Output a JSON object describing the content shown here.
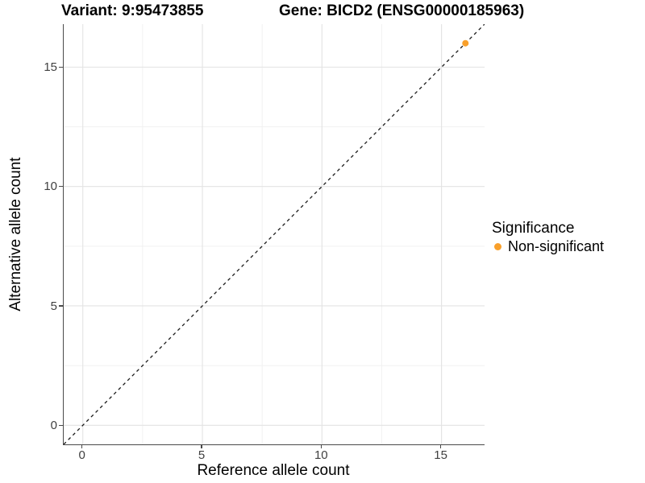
{
  "header": {
    "variant_title": "Variant: 9:95473855",
    "gene_title": "Gene: BICD2 (ENSG00000185963)"
  },
  "axes": {
    "x": {
      "label": "Reference allele count",
      "ticks": [
        "0",
        "5",
        "10",
        "15"
      ]
    },
    "y": {
      "label": "Alternative allele count",
      "ticks": [
        "15",
        "10",
        "5",
        "0"
      ]
    }
  },
  "legend": {
    "title": "Significance",
    "items": [
      {
        "label": "Non-significant",
        "color": "#F9A02B"
      }
    ]
  },
  "colors": {
    "point_orange": "#F9A02B",
    "axis_line": "#4a4a4a",
    "grid_major": "#e3e3e3",
    "grid_minor": "#f1f1f1",
    "dashed_line": "#1a1a1a",
    "tick_text": "#404040"
  },
  "chart_data": {
    "type": "scatter",
    "title": "Variant: 9:95473855 | Gene: BICD2 (ENSG00000185963)",
    "xlabel": "Reference allele count",
    "ylabel": "Alternative allele count",
    "xlim": [
      -0.8,
      16.8
    ],
    "ylim": [
      -0.8,
      16.8
    ],
    "x_major_ticks": [
      0,
      5,
      10,
      15
    ],
    "y_major_ticks": [
      0,
      5,
      10,
      15
    ],
    "x_minor_ticks": [
      2.5,
      7.5,
      12.5
    ],
    "y_minor_ticks": [
      2.5,
      7.5,
      12.5
    ],
    "grid": "major+minor",
    "legend_position": "right",
    "series": [
      {
        "name": "Non-significant",
        "color": "#F9A02B",
        "marker": "circle",
        "points": [
          {
            "x": 16,
            "y": 16
          }
        ]
      }
    ],
    "reference_line": {
      "kind": "identity",
      "equation": "y = x",
      "style": "dashed",
      "color": "#1a1a1a"
    }
  }
}
